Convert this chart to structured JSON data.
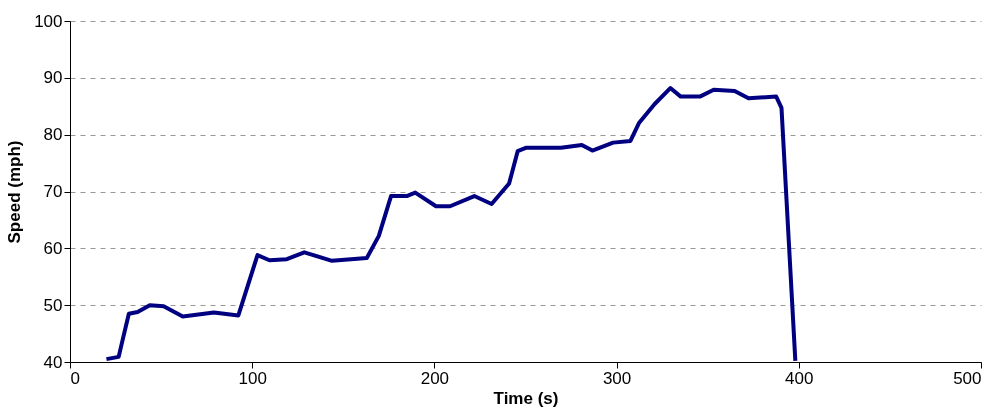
{
  "chart_data": {
    "type": "line",
    "xlabel": "Time (s)",
    "ylabel": "Speed (mph)",
    "xlim": [
      0,
      500
    ],
    "xticks": [
      0,
      100,
      200,
      300,
      400,
      500
    ],
    "ylim": [
      40,
      100
    ],
    "yticks": [
      40,
      50,
      60,
      70,
      80,
      90,
      100
    ],
    "grid": "y",
    "marker": "none",
    "line_style": "solid",
    "series": [
      {
        "color": "#000080",
        "x": [
          20,
          26.7,
          28.6,
          32.3,
          37.1,
          43.8,
          51.4,
          61.9,
          79,
          92.4,
          102.9,
          109.5,
          119,
          128.6,
          143.8,
          162.9,
          169.5,
          176.2,
          184.8,
          189.5,
          200.9,
          208.6,
          221.9,
          231.4,
          241,
          245.7,
          250.5,
          269.5,
          280.9,
          286.7,
          298.1,
          307.6,
          312.4,
          320.9,
          329.5,
          335.2,
          345.7,
          353.3,
          364.8,
          372.4,
          387.6,
          390.5,
          398.1
        ],
        "values": [
          40.5,
          40.9,
          43.5,
          48.5,
          48.8,
          50.0,
          49.8,
          48.0,
          48.7,
          48.2,
          58.8,
          57.9,
          58.1,
          59.3,
          57.8,
          58.3,
          62.2,
          69.2,
          69.2,
          69.8,
          67.4,
          67.4,
          69.2,
          67.8,
          71.4,
          77.1,
          77.7,
          77.7,
          78.2,
          77.2,
          78.6,
          78.9,
          82.1,
          85.4,
          88.2,
          86.7,
          86.7,
          87.9,
          87.7,
          86.4,
          86.7,
          84.7,
          40.2
        ]
      }
    ]
  }
}
